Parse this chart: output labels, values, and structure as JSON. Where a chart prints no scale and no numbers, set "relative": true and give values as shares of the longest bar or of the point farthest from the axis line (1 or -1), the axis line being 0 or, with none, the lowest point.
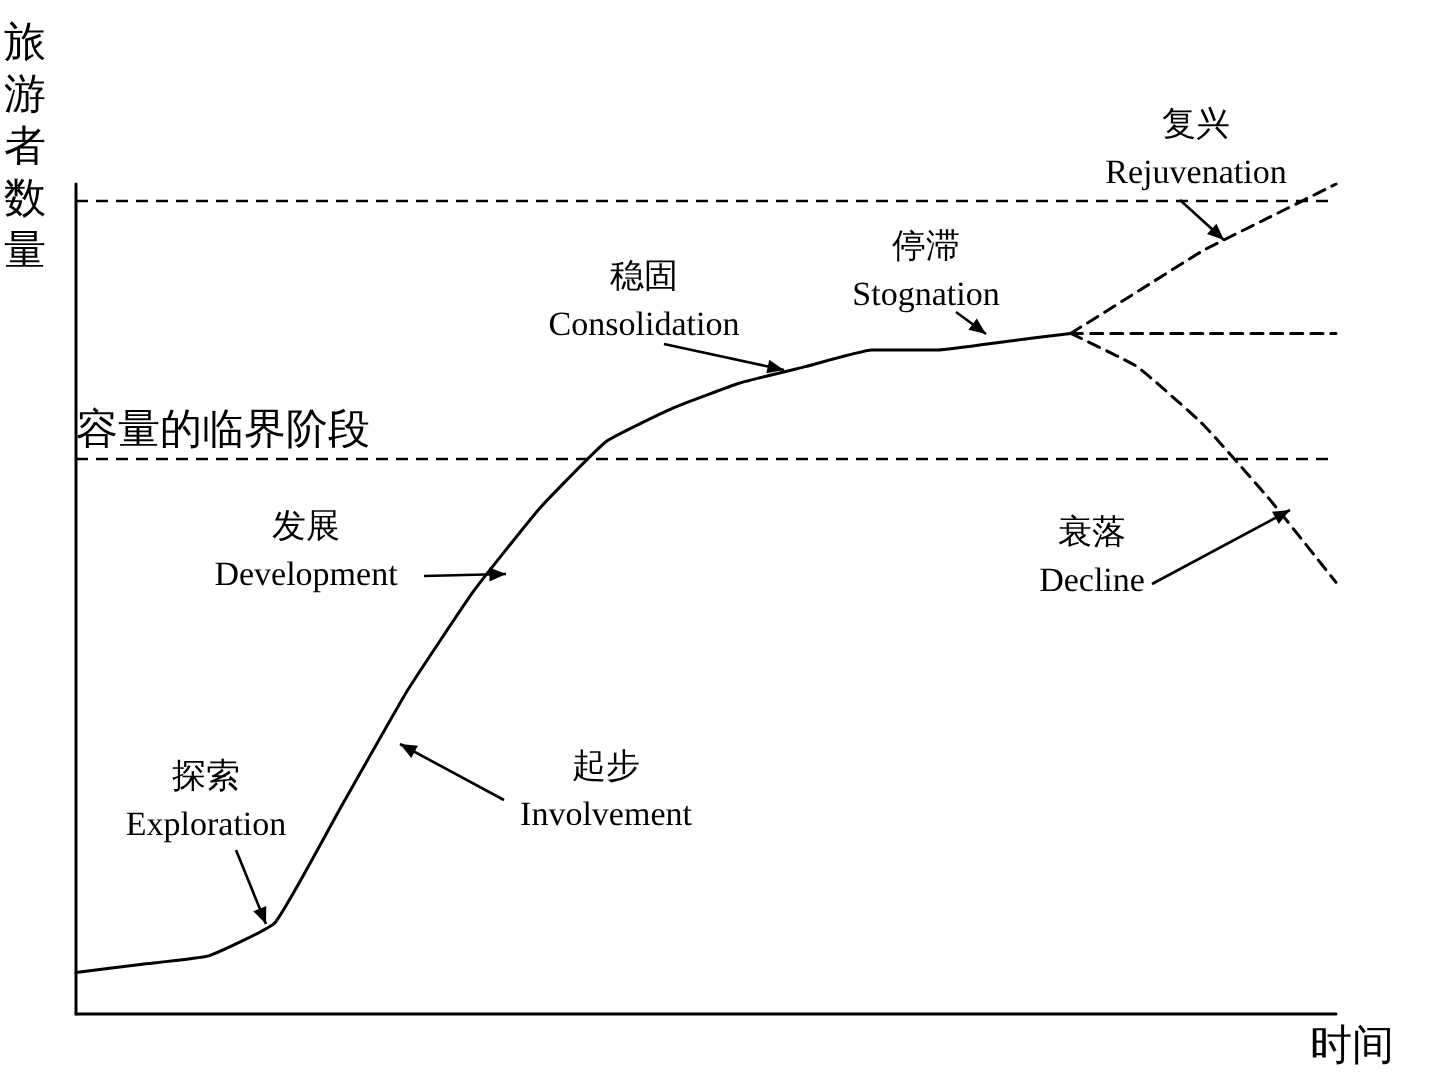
{
  "chart_data": {
    "type": "line",
    "relative": true,
    "xlabel": "时间",
    "ylabel": "旅游者数量",
    "marker": "none",
    "categories": [
      null,
      null,
      null,
      null,
      null,
      null,
      null,
      null,
      null,
      null,
      null,
      null,
      null,
      null,
      null,
      null,
      null,
      null,
      null,
      null
    ],
    "series": [
      {
        "color": "#000000",
        "line_style": "solid",
        "values": [
          0.05,
          0.06,
          0.07,
          0.11,
          0.25,
          0.39,
          0.51,
          0.61,
          0.69,
          0.73,
          0.76,
          0.78,
          0.8,
          0.8,
          0.81,
          0.82,
          null,
          null,
          null,
          null
        ]
      },
      {
        "color": "#000000",
        "line_style": "dashed",
        "values": [
          null,
          null,
          null,
          null,
          null,
          null,
          null,
          null,
          null,
          null,
          null,
          null,
          null,
          null,
          null,
          0.82,
          0.87,
          0.92,
          0.96,
          1
        ]
      },
      {
        "color": "#000000",
        "line_style": "dashed",
        "values": [
          null,
          null,
          null,
          null,
          null,
          null,
          null,
          null,
          null,
          null,
          null,
          null,
          null,
          null,
          null,
          0.82,
          0.82,
          0.82,
          0.82,
          0.82
        ]
      },
      {
        "color": "#000000",
        "line_style": "dashed",
        "values": [
          null,
          null,
          null,
          null,
          null,
          null,
          null,
          null,
          null,
          null,
          null,
          null,
          null,
          null,
          null,
          0.82,
          0.78,
          0.71,
          0.62,
          0.52
        ]
      }
    ],
    "ref_lines": [
      {
        "axis": "y",
        "value": 0.98,
        "label": null,
        "color": "#000000",
        "line_style": "dashed"
      },
      {
        "axis": "y",
        "value": 0.67,
        "label": "容量的临界阶段",
        "color": "#000000",
        "line_style": "dashed"
      }
    ],
    "annotations": [
      "复兴\nRejuvenation",
      "停滞\nStognation",
      "稳固\nConsolidation",
      "发展\nDevelopment",
      "起步\nInvolvement",
      "探索\nExploration",
      "衰落\nDecline"
    ]
  }
}
